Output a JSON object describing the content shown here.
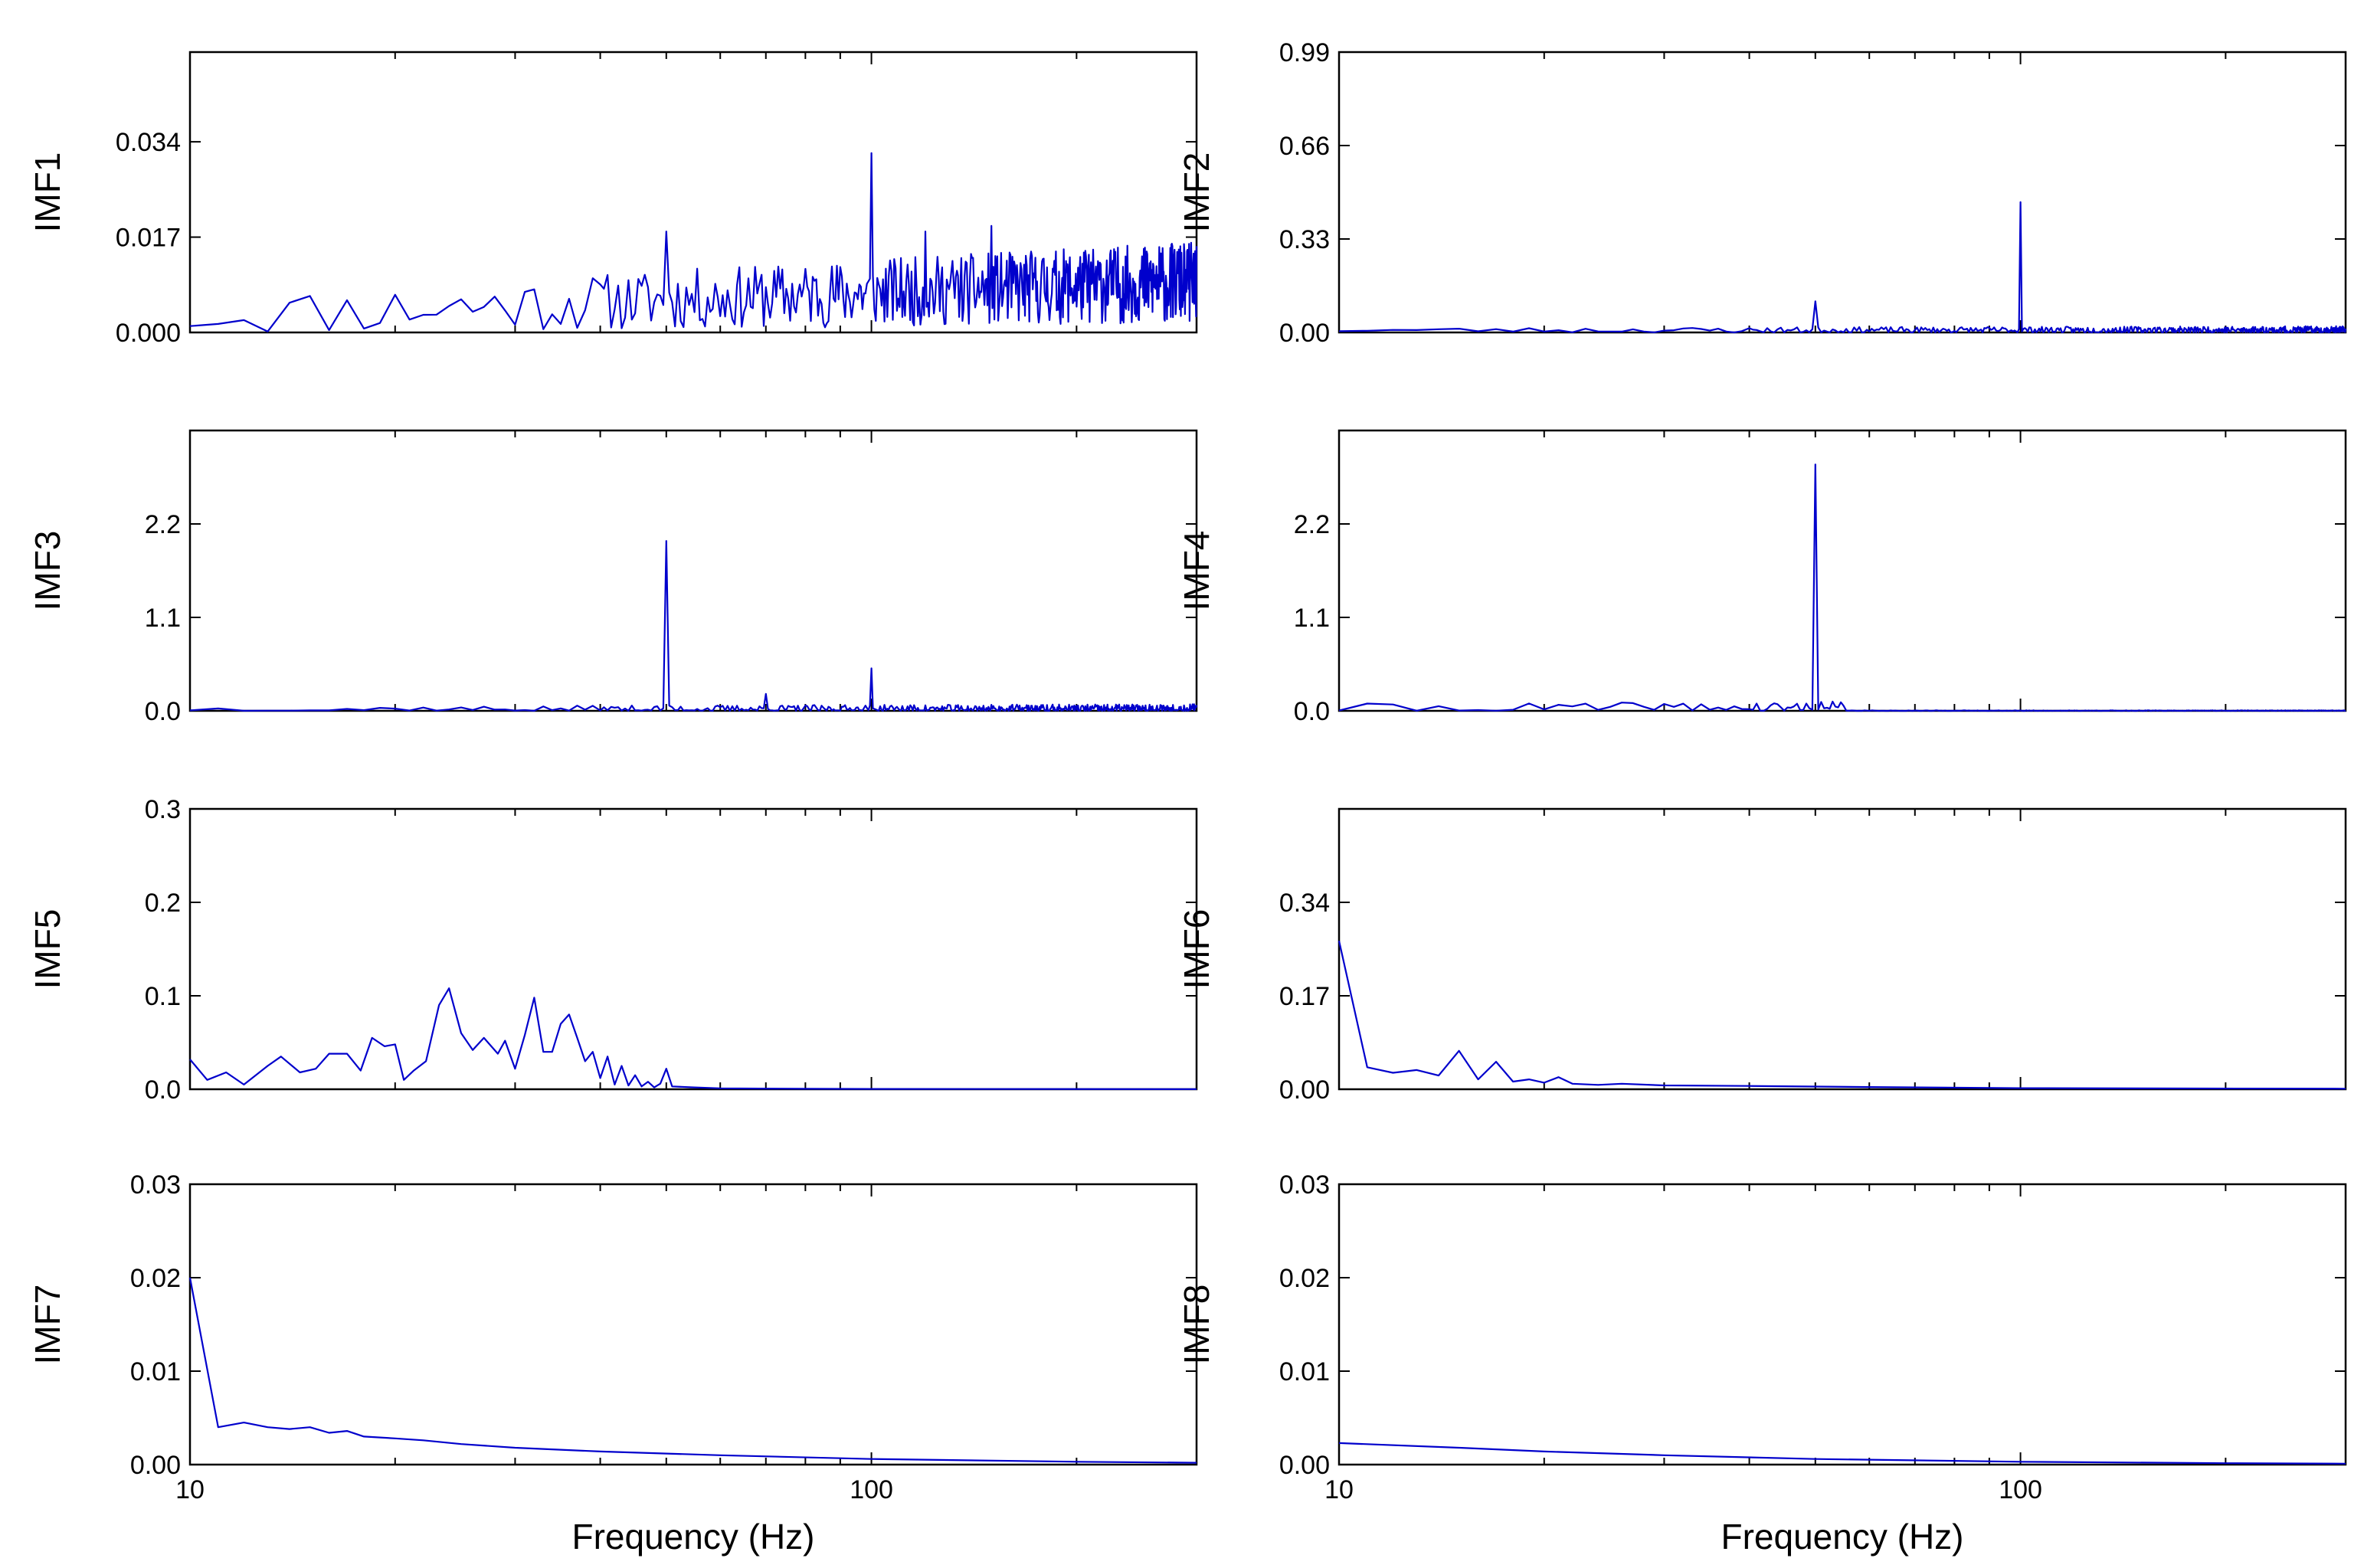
{
  "figure": {
    "line_color": "#0000CC",
    "axis_color": "#000000"
  },
  "chart_data": [
    {
      "id": "IMF1",
      "type": "line",
      "ylabel": "IMF1",
      "xscale": "log",
      "xlim": [
        10,
        300
      ],
      "ylim": [
        0,
        0.05
      ],
      "yticks": [
        0.0,
        0.017,
        0.034
      ],
      "ytick_labels": [
        "0.000",
        "0.017",
        "0.034"
      ],
      "xticks": [],
      "xtick_labels": [],
      "xlabel": "",
      "noise": {
        "seed": 11,
        "base": 0.003,
        "grow": 0.006,
        "amp": 0.006,
        "step": 1
      },
      "peaks": [
        [
          50,
          0.018
        ],
        [
          100,
          0.032
        ],
        [
          120,
          0.018
        ],
        [
          150,
          0.019
        ]
      ]
    },
    {
      "id": "IMF2",
      "type": "line",
      "ylabel": "IMF2",
      "xscale": "log",
      "xlim": [
        10,
        300
      ],
      "ylim": [
        0,
        0.99
      ],
      "yticks": [
        0.0,
        0.33,
        0.66,
        0.99
      ],
      "ytick_labels": [
        "0.00",
        "0.33",
        "0.66",
        "0.99"
      ],
      "xticks": [],
      "xtick_labels": [],
      "xlabel": "",
      "noise": {
        "seed": 23,
        "base": 0.008,
        "grow": 0.0,
        "amp": 0.012,
        "step": 1
      },
      "peaks": [
        [
          50,
          0.11
        ],
        [
          100,
          0.46
        ]
      ]
    },
    {
      "id": "IMF3",
      "type": "line",
      "ylabel": "IMF3",
      "xscale": "log",
      "xlim": [
        10,
        300
      ],
      "ylim": [
        0,
        3.3
      ],
      "yticks": [
        0.0,
        1.1,
        2.2
      ],
      "ytick_labels": [
        "0.0",
        "1.1",
        "2.2"
      ],
      "xticks": [],
      "xtick_labels": [],
      "xlabel": "",
      "noise": {
        "seed": 37,
        "base": 0.02,
        "grow": 0.0,
        "amp": 0.05,
        "step": 1
      },
      "peaks": [
        [
          50,
          2.0
        ],
        [
          70,
          0.2
        ],
        [
          100,
          0.5
        ]
      ]
    },
    {
      "id": "IMF4",
      "type": "line",
      "ylabel": "IMF4",
      "xscale": "log",
      "xlim": [
        10,
        300
      ],
      "ylim": [
        0,
        3.3
      ],
      "yticks": [
        0.0,
        1.1,
        2.2
      ],
      "ytick_labels": [
        "0.0",
        "1.1",
        "2.2"
      ],
      "xticks": [],
      "xtick_labels": [],
      "xlabel": "",
      "noise": {
        "seed": 41,
        "base": 0.03,
        "grow": 0.0,
        "amp": 0.09,
        "step": 1,
        "fade_after": 55
      },
      "peaks": [
        [
          50,
          2.9
        ]
      ]
    },
    {
      "id": "IMF5",
      "type": "line",
      "ylabel": "IMF5",
      "xscale": "log",
      "xlim": [
        10,
        300
      ],
      "ylim": [
        0,
        0.3
      ],
      "yticks": [
        0.0,
        0.1,
        0.2,
        0.3
      ],
      "ytick_labels": [
        "0.0",
        "0.1",
        "0.2",
        "0.3"
      ],
      "xticks": [],
      "xtick_labels": [],
      "xlabel": "",
      "points": [
        [
          10,
          0.032
        ],
        [
          10.6,
          0.01
        ],
        [
          11.3,
          0.018
        ],
        [
          12,
          0.005
        ],
        [
          13,
          0.025
        ],
        [
          13.6,
          0.035
        ],
        [
          14.5,
          0.018
        ],
        [
          15.3,
          0.022
        ],
        [
          16,
          0.038
        ],
        [
          17,
          0.038
        ],
        [
          17.8,
          0.02
        ],
        [
          18.5,
          0.055
        ],
        [
          19.3,
          0.046
        ],
        [
          20,
          0.048
        ],
        [
          20.6,
          0.01
        ],
        [
          21.3,
          0.02
        ],
        [
          22.2,
          0.03
        ],
        [
          23.2,
          0.09
        ],
        [
          24,
          0.108
        ],
        [
          25,
          0.06
        ],
        [
          26,
          0.042
        ],
        [
          27,
          0.055
        ],
        [
          28.3,
          0.038
        ],
        [
          29,
          0.052
        ],
        [
          30,
          0.022
        ],
        [
          31,
          0.058
        ],
        [
          32,
          0.098
        ],
        [
          33,
          0.04
        ],
        [
          34,
          0.04
        ],
        [
          35,
          0.07
        ],
        [
          36,
          0.08
        ],
        [
          37,
          0.055
        ],
        [
          38,
          0.03
        ],
        [
          39,
          0.04
        ],
        [
          40,
          0.012
        ],
        [
          41,
          0.035
        ],
        [
          42,
          0.005
        ],
        [
          43,
          0.025
        ],
        [
          44,
          0.004
        ],
        [
          45,
          0.015
        ],
        [
          46,
          0.003
        ],
        [
          47,
          0.008
        ],
        [
          48,
          0.002
        ],
        [
          49,
          0.006
        ],
        [
          50,
          0.022
        ],
        [
          51,
          0.003
        ],
        [
          55,
          0.002
        ],
        [
          60,
          0.001
        ],
        [
          80,
          0.0005
        ],
        [
          100,
          0.0003
        ],
        [
          300,
          0.0001
        ]
      ]
    },
    {
      "id": "IMF6",
      "type": "line",
      "ylabel": "IMF6",
      "xscale": "log",
      "xlim": [
        10,
        300
      ],
      "ylim": [
        0,
        0.51
      ],
      "yticks": [
        0.0,
        0.17,
        0.34
      ],
      "ytick_labels": [
        "0.00",
        "0.17",
        "0.34"
      ],
      "xticks": [],
      "xtick_labels": [],
      "xlabel": "",
      "points": [
        [
          10,
          0.27
        ],
        [
          11,
          0.04
        ],
        [
          12,
          0.03
        ],
        [
          13,
          0.035
        ],
        [
          14,
          0.025
        ],
        [
          15,
          0.07
        ],
        [
          16,
          0.018
        ],
        [
          17,
          0.05
        ],
        [
          18,
          0.014
        ],
        [
          19,
          0.018
        ],
        [
          20,
          0.012
        ],
        [
          21,
          0.022
        ],
        [
          22,
          0.01
        ],
        [
          24,
          0.008
        ],
        [
          26,
          0.01
        ],
        [
          30,
          0.007
        ],
        [
          40,
          0.006
        ],
        [
          60,
          0.004
        ],
        [
          100,
          0.002
        ],
        [
          300,
          0.001
        ]
      ]
    },
    {
      "id": "IMF7",
      "type": "line",
      "ylabel": "IMF7",
      "xscale": "log",
      "xlim": [
        10,
        300
      ],
      "ylim": [
        0,
        0.03
      ],
      "yticks": [
        0.0,
        0.01,
        0.02,
        0.03
      ],
      "ytick_labels": [
        "0.00",
        "0.01",
        "0.02",
        "0.03"
      ],
      "xticks": [
        10,
        100
      ],
      "xtick_labels": [
        "10",
        "100"
      ],
      "xlabel": "Frequency (Hz)",
      "points": [
        [
          10,
          0.02
        ],
        [
          11,
          0.004
        ],
        [
          12,
          0.0045
        ],
        [
          13,
          0.004
        ],
        [
          14,
          0.0038
        ],
        [
          15,
          0.004
        ],
        [
          16,
          0.0034
        ],
        [
          17,
          0.0036
        ],
        [
          18,
          0.003
        ],
        [
          20,
          0.0028
        ],
        [
          22,
          0.0026
        ],
        [
          25,
          0.0022
        ],
        [
          30,
          0.0018
        ],
        [
          40,
          0.0014
        ],
        [
          60,
          0.001
        ],
        [
          100,
          0.0006
        ],
        [
          200,
          0.0003
        ],
        [
          300,
          0.0002
        ]
      ]
    },
    {
      "id": "IMF8",
      "type": "line",
      "ylabel": "IMF8",
      "xscale": "log",
      "xlim": [
        10,
        300
      ],
      "ylim": [
        0,
        0.03
      ],
      "yticks": [
        0.0,
        0.01,
        0.02,
        0.03
      ],
      "ytick_labels": [
        "0.00",
        "0.01",
        "0.02",
        "0.03"
      ],
      "xticks": [
        10,
        100
      ],
      "xtick_labels": [
        "10",
        "100"
      ],
      "xlabel": "Frequency (Hz)",
      "points": [
        [
          10,
          0.0023
        ],
        [
          15,
          0.0018
        ],
        [
          20,
          0.0014
        ],
        [
          30,
          0.001
        ],
        [
          50,
          0.0006
        ],
        [
          100,
          0.0003
        ],
        [
          200,
          0.00015
        ],
        [
          300,
          0.0001
        ]
      ]
    }
  ]
}
